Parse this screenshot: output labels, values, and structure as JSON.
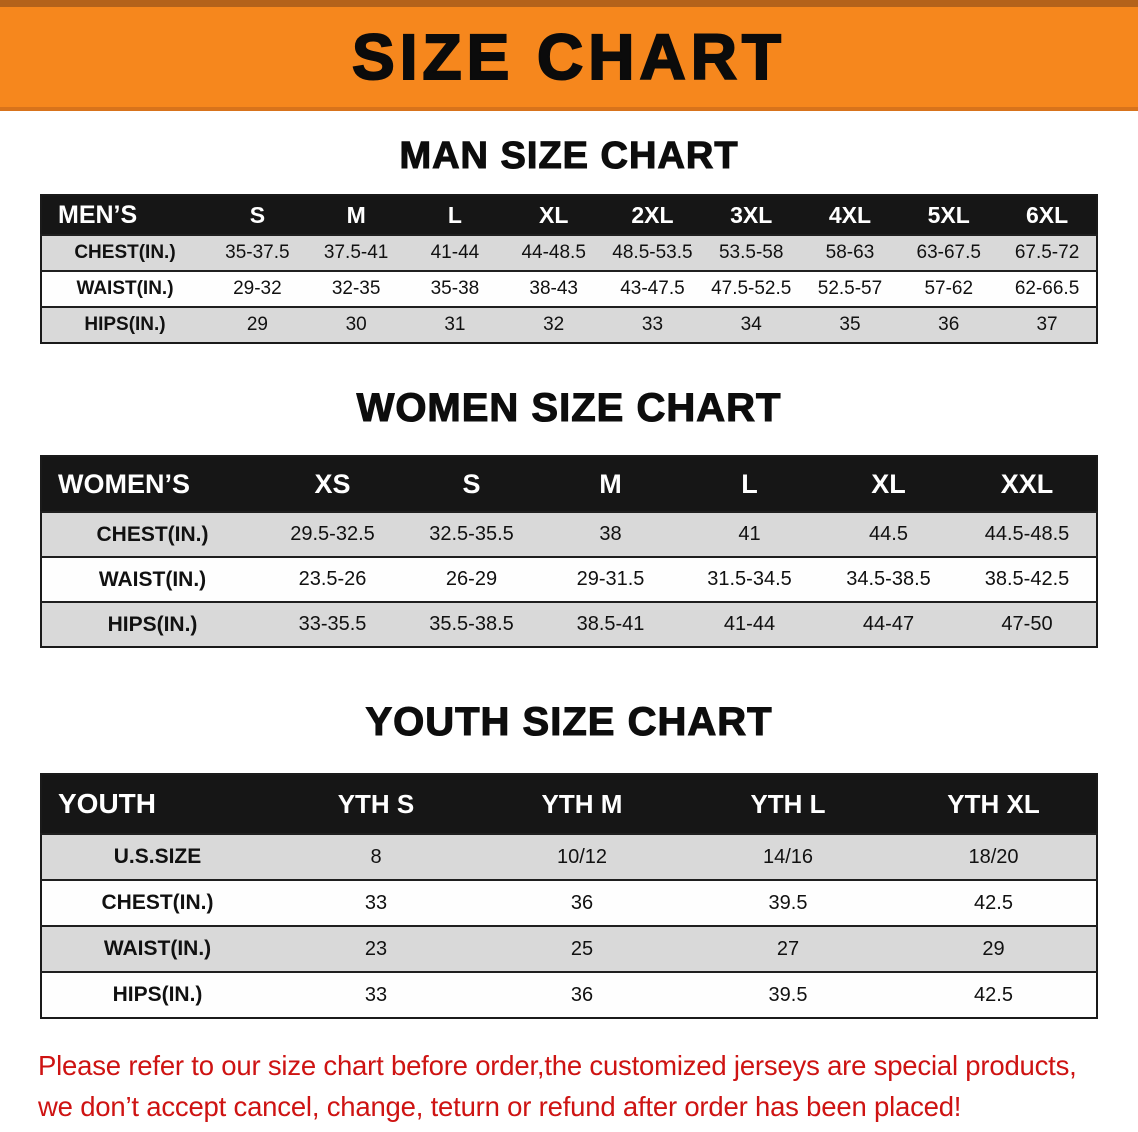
{
  "banner": {
    "title": "SIZE CHART"
  },
  "sections": [
    {
      "heading": "MAN SIZE CHART",
      "table": {
        "header": [
          "MEN’S",
          "S",
          "M",
          "L",
          "XL",
          "2XL",
          "3XL",
          "4XL",
          "5XL",
          "6XL"
        ],
        "rows": [
          [
            "CHEST(IN.)",
            "35-37.5",
            "37.5-41",
            "41-44",
            "44-48.5",
            "48.5-53.5",
            "53.5-58",
            "58-63",
            "63-67.5",
            "67.5-72"
          ],
          [
            "WAIST(IN.)",
            "29-32",
            "32-35",
            "35-38",
            "38-43",
            "43-47.5",
            "47.5-52.5",
            "52.5-57",
            "57-62",
            "62-66.5"
          ],
          [
            "HIPS(IN.)",
            "29",
            "30",
            "31",
            "32",
            "33",
            "34",
            "35",
            "36",
            "37"
          ]
        ]
      }
    },
    {
      "heading": "WOMEN SIZE CHART",
      "table": {
        "header": [
          "WOMEN’S",
          "XS",
          "S",
          "M",
          "L",
          "XL",
          "XXL"
        ],
        "rows": [
          [
            "CHEST(IN.)",
            "29.5-32.5",
            "32.5-35.5",
            "38",
            "41",
            "44.5",
            "44.5-48.5"
          ],
          [
            "WAIST(IN.)",
            "23.5-26",
            "26-29",
            "29-31.5",
            "31.5-34.5",
            "34.5-38.5",
            "38.5-42.5"
          ],
          [
            "HIPS(IN.)",
            "33-35.5",
            "35.5-38.5",
            "38.5-41",
            "41-44",
            "44-47",
            "47-50"
          ]
        ]
      }
    },
    {
      "heading": "YOUTH SIZE CHART",
      "table": {
        "header": [
          "YOUTH",
          "YTH S",
          "YTH M",
          "YTH L",
          "YTH XL"
        ],
        "rows": [
          [
            "U.S.SIZE",
            "8",
            "10/12",
            "14/16",
            "18/20"
          ],
          [
            "CHEST(IN.)",
            "33",
            "36",
            "39.5",
            "42.5"
          ],
          [
            "WAIST(IN.)",
            "23",
            "25",
            "27",
            "29"
          ],
          [
            "HIPS(IN.)",
            "33",
            "36",
            "39.5",
            "42.5"
          ]
        ]
      }
    }
  ],
  "footer": {
    "line1": "Please refer to our size chart before order,the customized jerseys are special products,",
    "line2": "we don’t accept cancel, change, teturn or refund after order has been placed!"
  },
  "colors": {
    "banner_orange": "#F6871D",
    "header_black": "#161616",
    "row_gray": "#D9D9D9",
    "disclaimer_red": "#CE1312"
  }
}
